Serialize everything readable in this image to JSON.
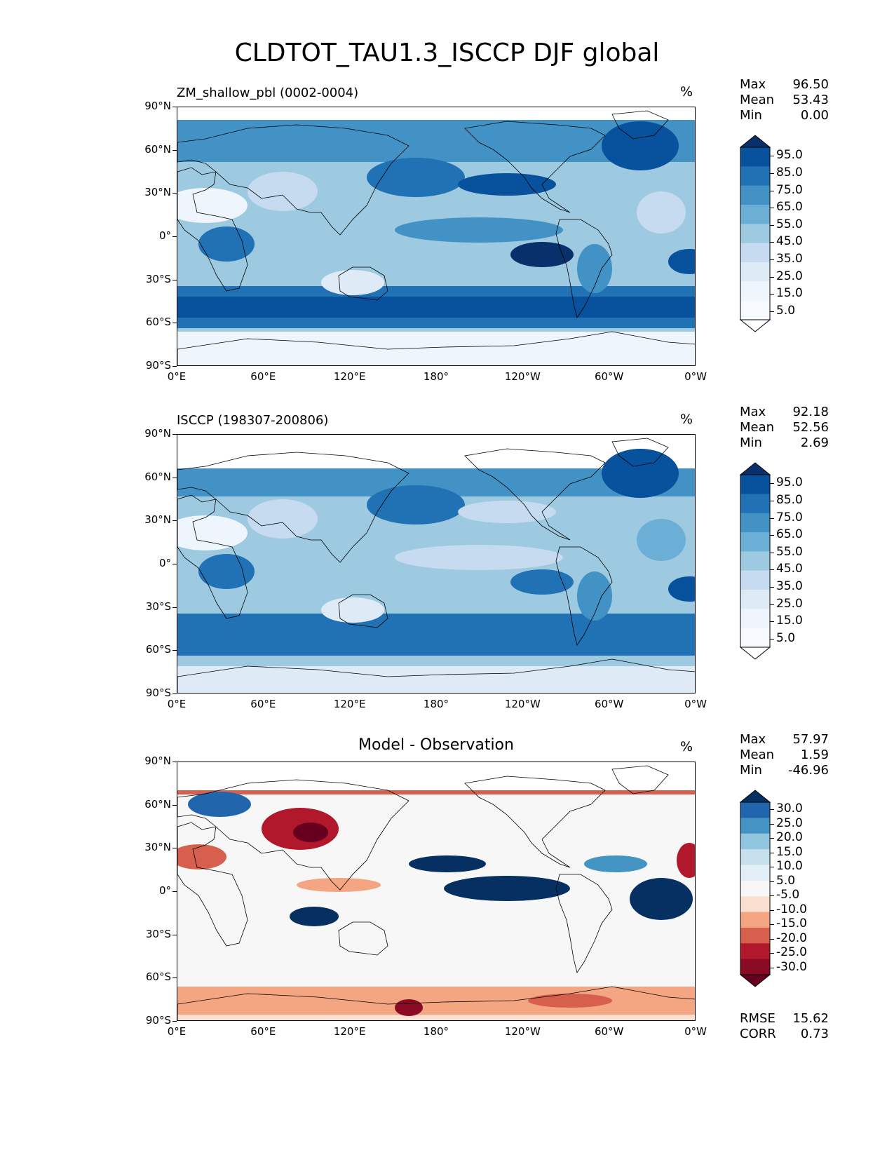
{
  "title": "CLDTOT_TAU1.3_ISCCP DJF global",
  "panels": [
    {
      "left_title": "ZM_shallow_pbl (0002-0004)",
      "center_title": "",
      "units": "%",
      "stats": [
        {
          "label": "Max",
          "value": "96.50"
        },
        {
          "label": "Mean",
          "value": "53.43"
        },
        {
          "label": "Min",
          "value": "0.00"
        }
      ],
      "colorbar": {
        "labels": [
          "95.0",
          "85.0",
          "75.0",
          "65.0",
          "55.0",
          "45.0",
          "35.0",
          "25.0",
          "15.0",
          "5.0"
        ],
        "colors": [
          "#08306b",
          "#08519c",
          "#2171b5",
          "#4292c6",
          "#6baed6",
          "#9ecae1",
          "#c6dbef",
          "#deebf7",
          "#eef5fc",
          "#f7fbff",
          "#ffffff"
        ]
      }
    },
    {
      "left_title": "ISCCP (198307-200806)",
      "center_title": "",
      "units": "%",
      "stats": [
        {
          "label": "Max",
          "value": "92.18"
        },
        {
          "label": "Mean",
          "value": "52.56"
        },
        {
          "label": "Min",
          "value": "2.69"
        }
      ],
      "colorbar": {
        "labels": [
          "95.0",
          "85.0",
          "75.0",
          "65.0",
          "55.0",
          "45.0",
          "35.0",
          "25.0",
          "15.0",
          "5.0"
        ],
        "colors": [
          "#08306b",
          "#08519c",
          "#2171b5",
          "#4292c6",
          "#6baed6",
          "#9ecae1",
          "#c6dbef",
          "#deebf7",
          "#eef5fc",
          "#f7fbff",
          "#ffffff"
        ]
      }
    },
    {
      "left_title": "",
      "center_title": "Model - Observation",
      "units": "%",
      "stats": [
        {
          "label": "Max",
          "value": "57.97"
        },
        {
          "label": "Mean",
          "value": "1.59"
        },
        {
          "label": "Min",
          "value": "-46.96"
        }
      ],
      "extra_stats": [
        {
          "label": "RMSE",
          "value": "15.62"
        },
        {
          "label": "CORR",
          "value": "0.73"
        }
      ],
      "colorbar": {
        "labels": [
          "30.0",
          "25.0",
          "20.0",
          "15.0",
          "10.0",
          "5.0",
          "-5.0",
          "-10.0",
          "-15.0",
          "-20.0",
          "-25.0",
          "-30.0"
        ],
        "colors": [
          "#053061",
          "#2166ac",
          "#4393c3",
          "#92c5de",
          "#c7e0ee",
          "#e3eef6",
          "#f7f7f7",
          "#fbe0d2",
          "#f4a582",
          "#d6604d",
          "#b2182b",
          "#8b0a23",
          "#67001f"
        ]
      }
    }
  ],
  "axes": {
    "lat_ticks": [
      "90°N",
      "60°N",
      "30°N",
      "0°",
      "30°S",
      "60°S",
      "90°S"
    ],
    "lon_ticks": [
      "0°E",
      "60°E",
      "120°E",
      "180°",
      "120°W",
      "60°W",
      "0°W"
    ]
  }
}
